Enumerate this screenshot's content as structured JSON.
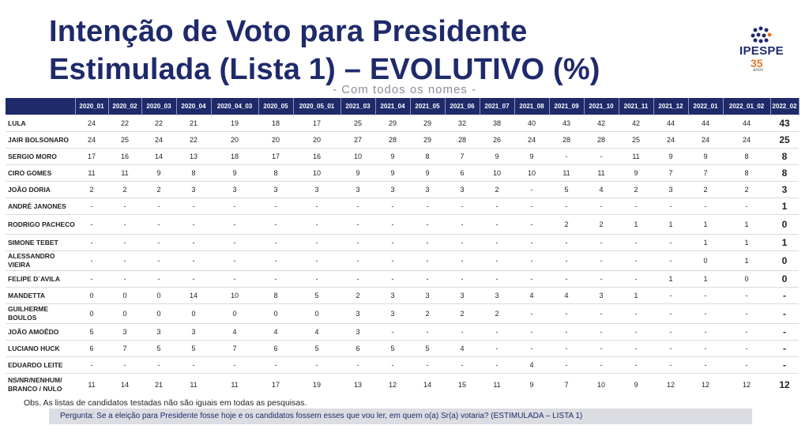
{
  "title_line1": "Intenção de Voto para Presidente",
  "title_line2": "Estimulada (Lista 1) – EVOLUTIVO (%)",
  "subtitle": "- Com todos os nomes -",
  "logo": {
    "brand": "IPESPE",
    "years": "35",
    "anos": "anos"
  },
  "columns": [
    "2020_01",
    "2020_02",
    "2020_03",
    "2020_04",
    "2020_04_03",
    "2020_05",
    "2020_05_01",
    "2021_03",
    "2021_04",
    "2021_05",
    "2021_06",
    "2021_07",
    "2021_08",
    "2021_09",
    "2021_10",
    "2021_11",
    "2021_12",
    "2022_01",
    "2022_01_02",
    "2022_02"
  ],
  "rows": [
    {
      "name": "LULA",
      "values": [
        "24",
        "22",
        "22",
        "21",
        "19",
        "18",
        "17",
        "25",
        "29",
        "29",
        "32",
        "38",
        "40",
        "43",
        "42",
        "42",
        "44",
        "44",
        "44",
        "43"
      ]
    },
    {
      "name": "JAIR BOLSONARO",
      "values": [
        "24",
        "25",
        "24",
        "22",
        "20",
        "20",
        "20",
        "27",
        "28",
        "29",
        "28",
        "26",
        "24",
        "28",
        "28",
        "25",
        "24",
        "24",
        "24",
        "25"
      ]
    },
    {
      "name": "SERGIO MORO",
      "values": [
        "17",
        "16",
        "14",
        "13",
        "18",
        "17",
        "16",
        "10",
        "9",
        "8",
        "7",
        "9",
        "9",
        "-",
        "-",
        "11",
        "9",
        "9",
        "8",
        "8"
      ]
    },
    {
      "name": "CIRO GOMES",
      "values": [
        "11",
        "11",
        "9",
        "8",
        "9",
        "8",
        "10",
        "9",
        "9",
        "9",
        "6",
        "10",
        "10",
        "11",
        "11",
        "9",
        "7",
        "7",
        "8",
        "8"
      ]
    },
    {
      "name": "JOÃO DORIA",
      "values": [
        "2",
        "2",
        "2",
        "3",
        "3",
        "3",
        "3",
        "3",
        "3",
        "3",
        "3",
        "2",
        "-",
        "5",
        "4",
        "2",
        "3",
        "2",
        "2",
        "3"
      ]
    },
    {
      "name": "ANDRÉ JANONES",
      "values": [
        "-",
        "-",
        "-",
        "-",
        "-",
        "-",
        "-",
        "-",
        "-",
        "-",
        "-",
        "-",
        "-",
        "-",
        "-",
        "-",
        "-",
        "-",
        "-",
        "1"
      ]
    },
    {
      "name": "RODRIGO PACHECO",
      "values": [
        "-",
        "-",
        "-",
        "-",
        "-",
        "-",
        "-",
        "-",
        "-",
        "-",
        "-",
        "-",
        "-",
        "2",
        "2",
        "1",
        "1",
        "1",
        "1",
        "0"
      ]
    },
    {
      "name": "SIMONE TEBET",
      "values": [
        "-",
        "-",
        "-",
        "-",
        "-",
        "-",
        "-",
        "-",
        "-",
        "-",
        "-",
        "-",
        "-",
        "-",
        "-",
        "-",
        "-",
        "1",
        "1",
        "1"
      ]
    },
    {
      "name": "ALESSANDRO VIEIRA",
      "values": [
        "-",
        "-",
        "-",
        "-",
        "-",
        "-",
        "-",
        "-",
        "-",
        "-",
        "-",
        "-",
        "-",
        "-",
        "-",
        "-",
        "-",
        "0",
        "1",
        "0"
      ]
    },
    {
      "name": "FELIPE D`AVILA",
      "values": [
        "-",
        "-",
        "-",
        "-",
        "-",
        "-",
        "-",
        "-",
        "-",
        "-",
        "-",
        "-",
        "-",
        "-",
        "-",
        "-",
        "1",
        "1",
        "0",
        "0"
      ]
    },
    {
      "name": "MANDETTA",
      "values": [
        "0",
        "0",
        "0",
        "14",
        "10",
        "8",
        "5",
        "2",
        "3",
        "3",
        "3",
        "3",
        "4",
        "4",
        "3",
        "1",
        "-",
        "-",
        "-",
        "-"
      ]
    },
    {
      "name": "GUILHERME BOULOS",
      "values": [
        "0",
        "0",
        "0",
        "0",
        "0",
        "0",
        "0",
        "3",
        "3",
        "2",
        "2",
        "2",
        "-",
        "-",
        "-",
        "-",
        "-",
        "-",
        "-",
        "-"
      ]
    },
    {
      "name": "JOÃO AMOÊDO",
      "values": [
        "5",
        "3",
        "3",
        "3",
        "4",
        "4",
        "4",
        "3",
        "-",
        "-",
        "-",
        "-",
        "-",
        "-",
        "-",
        "-",
        "-",
        "-",
        "-",
        "-"
      ]
    },
    {
      "name": "LUCIANO HUCK",
      "values": [
        "6",
        "7",
        "5",
        "5",
        "7",
        "6",
        "5",
        "6",
        "5",
        "5",
        "4",
        "-",
        "-",
        "-",
        "-",
        "-",
        "-",
        "-",
        "-",
        "-"
      ]
    },
    {
      "name": "EDUARDO LEITE",
      "values": [
        "-",
        "-",
        "-",
        "-",
        "-",
        "-",
        "-",
        "-",
        "-",
        "-",
        "-",
        "-",
        "4",
        "-",
        "-",
        "-",
        "-",
        "-",
        "-",
        "-"
      ]
    },
    {
      "name": "NS/NR/NENHUM/ BRANCO / NULO",
      "values": [
        "11",
        "14",
        "21",
        "11",
        "11",
        "17",
        "19",
        "13",
        "12",
        "14",
        "15",
        "11",
        "9",
        "7",
        "10",
        "9",
        "12",
        "12",
        "12",
        "12"
      ]
    }
  ],
  "obs": "Obs. As listas de candidatos testadas não são iguais em todas as pesquisas.",
  "question": "Pergunta:  Se a eleição para Presidente fosse hoje e os candidatos fossem esses que vou ler, em quem o(a) Sr(a) votaria? (ESTIMULADA – LISTA 1)",
  "colors": {
    "navy": "#1f2a6b",
    "orange": "#e0782d",
    "question_bg": "#dcdde2"
  }
}
